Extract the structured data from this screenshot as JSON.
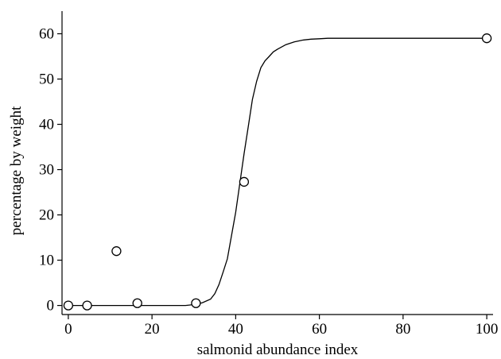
{
  "chart_data": {
    "type": "scatter",
    "title": "",
    "xlabel": "salmonid abundance index",
    "ylabel": "percentage by weight",
    "xlim": [
      -1.5,
      101.5
    ],
    "ylim": [
      -2,
      65
    ],
    "x_ticks": [
      0,
      20,
      40,
      60,
      80,
      100
    ],
    "y_ticks": [
      0,
      10,
      20,
      30,
      40,
      50,
      60
    ],
    "grid": false,
    "legend": "none",
    "series": [
      {
        "kind": "points",
        "marker": "open-circle",
        "x": [
          0,
          4.5,
          11.5,
          16.5,
          30.5,
          42,
          100
        ],
        "y": [
          0,
          0,
          12,
          0.5,
          0.5,
          27.3,
          59
        ]
      },
      {
        "kind": "fitted-curve",
        "x": [
          28,
          30,
          32,
          34,
          35,
          36,
          37,
          38,
          39,
          40,
          41,
          42,
          43,
          44,
          45,
          46,
          47,
          48,
          49,
          50,
          52,
          54,
          56,
          58,
          60,
          62,
          64,
          100
        ],
        "y": [
          0,
          0.2,
          0.6,
          1.4,
          2.6,
          4.6,
          7.4,
          10.3,
          15.4,
          20.6,
          27.0,
          33.5,
          39.5,
          45.5,
          49.5,
          52.5,
          54.0,
          55.0,
          56.0,
          56.6,
          57.6,
          58.2,
          58.6,
          58.8,
          58.9,
          59.0,
          59.0,
          59.0
        ],
        "x_start": 0,
        "y_start": 0
      }
    ]
  }
}
